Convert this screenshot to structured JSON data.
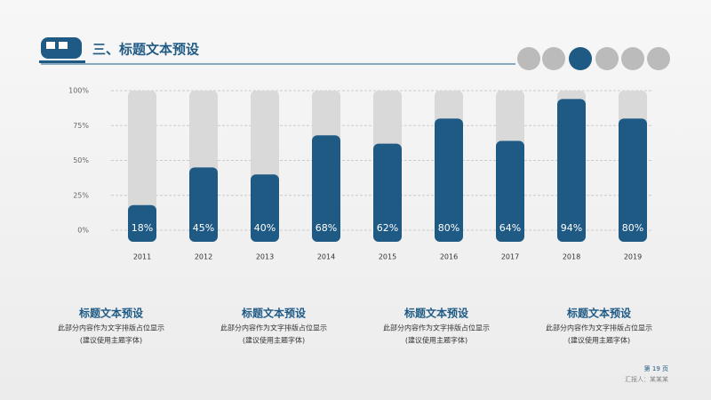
{
  "header": {
    "title": "三、标题文本预设"
  },
  "chart_data": {
    "type": "bar",
    "categories": [
      "2011",
      "2012",
      "2013",
      "2014",
      "2015",
      "2016",
      "2017",
      "2018",
      "2019"
    ],
    "values": [
      18,
      45,
      40,
      68,
      62,
      80,
      64,
      94,
      80
    ],
    "value_labels": [
      "18%",
      "45%",
      "40%",
      "68%",
      "62%",
      "80%",
      "64%",
      "94%",
      "80%"
    ],
    "color": "#1f5a85",
    "track_color": "#d9d9d9",
    "ylim": [
      0,
      100
    ],
    "yticks": [
      {
        "value": 0,
        "label": "0%"
      },
      {
        "value": 25,
        "label": "25%"
      },
      {
        "value": 50,
        "label": "50%"
      },
      {
        "value": 75,
        "label": "75%"
      },
      {
        "value": 100,
        "label": "100%"
      }
    ],
    "grid": true
  },
  "blocks": [
    {
      "title": "标题文本预设",
      "line1": "此部分内容作为文字排版占位显示",
      "line2": "(建议使用主题字体)"
    },
    {
      "title": "标题文本预设",
      "line1": "此部分内容作为文字排版占位显示",
      "line2": "(建议使用主题字体)"
    },
    {
      "title": "标题文本预设",
      "line1": "此部分内容作为文字排版占位显示",
      "line2": "(建议使用主题字体)"
    },
    {
      "title": "标题文本预设",
      "line1": "此部分内容作为文字排版占位显示",
      "line2": "(建议使用主题字体)"
    }
  ],
  "footer": {
    "page": "第 19 页",
    "note": "汇报人：某某某"
  }
}
